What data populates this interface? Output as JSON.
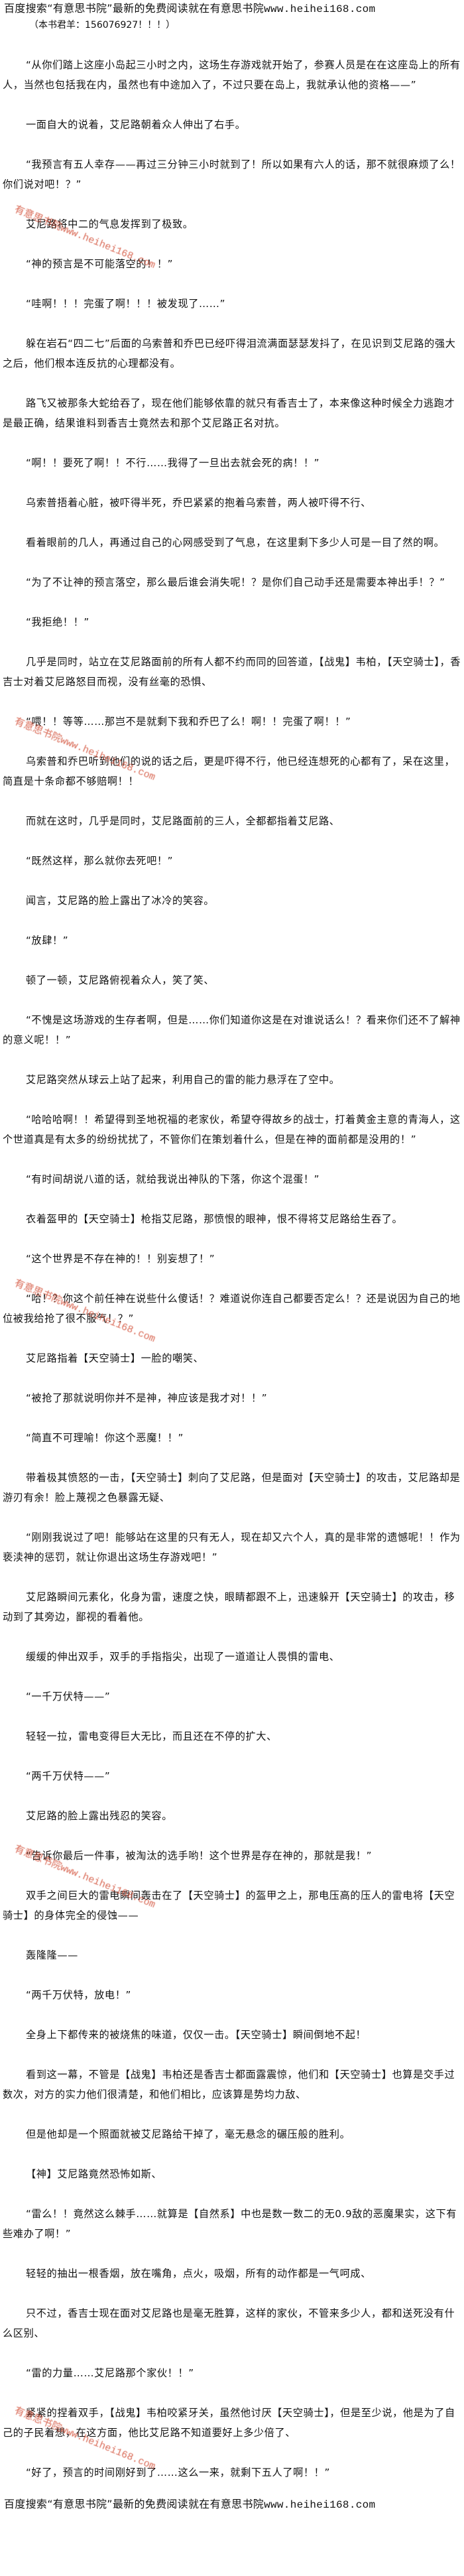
{
  "header": {
    "banner_text": "百度搜索“有意思书院”最新的免费阅读就在有意思书院",
    "banner_url": "www.heihei168.com",
    "qq_group": "（本书君羊：156076927！！！）"
  },
  "watermark": {
    "text": "有意思书院",
    "url": "www.heihei168.com",
    "color": "#d0452c"
  },
  "paragraphs": [
    "“从你们踏上这座小岛起三小时之内，这场生存游戏就开始了，参赛人员是在在这座岛上的所有人，当然也包括我在内，虽然也有中途加入了，不过只要在岛上，我就承认他的资格——”",
    "一面自大的说着，艾尼路朝着众人伸出了右手。",
    "“我预言有五人幸存——再过三分钟三小时就到了！所以如果有六人的话，那不就很麻烦了么！你们说对吧！？”",
    "艾尼路将中二的气息发挥到了极致。",
    "“神的预言是不可能落空的！！”",
    "“哇啊！！！完蛋了啊！！！被发现了……”",
    "躲在岩石“四二七”后面的乌索普和乔巴已经吓得泪流满面瑟瑟发抖了，在见识到艾尼路的强大之后，他们根本连反抗的心理都没有。",
    "路飞又被那条大蛇给吞了，现在他们能够依靠的就只有香吉士了，本来像这种时候全力逃跑才是最正确，结果谁料到香吉士竟然去和那个艾尼路正名对抗。",
    "“啊！！要死了啊！！不行……我得了一旦出去就会死的病！！”",
    "乌索普捂着心脏，被吓得半死，乔巴紧紧的抱着乌索普，两人被吓得不行、",
    "看着眼前的几人，再通过自己的心网感受到了气息，在这里剩下多少人可是一目了然的啊。",
    "“为了不让神的预言落空，那么最后谁会消失呢！？是你们自己动手还是需要本神出手！？”",
    "“我拒绝！！”",
    "几乎是同时，站立在艾尼路面前的所有人都不约而同的回答道，【战鬼】韦柏，【天空骑士】，香吉士对着艾尼路怒目而视，没有丝毫的恐惧、",
    "“喂！！等等……那岂不是就剩下我和乔巴了么！啊！！完蛋了啊！！”",
    "乌索普和乔巴听到他们的说的话之后，更是吓得不行，他已经连想死的心都有了，呆在这里，简直是十条命都不够赔啊！！",
    "而就在这时，几乎是同时，艾尼路面前的三人，全都都指着艾尼路、",
    "“既然这样，那么就你去死吧！”",
    "闻言，艾尼路的脸上露出了冰冷的笑容。",
    "“放肆！”",
    "顿了一顿，艾尼路俯视着众人，笑了笑、",
    "“不愧是这场游戏的生存者啊，但是……你们知道你这是在对谁说话么！？看来你们还不了解神的意义呢！！”",
    "艾尼路突然从球云上站了起来，利用自己的雷的能力悬浮在了空中。",
    "“哈哈哈啊！！希望得到圣地祝福的老家伙，希望夺得故乡的战士，打着黄金主意的青海人，这个世道真是有太多的纷纷扰扰了，不管你们在策划着什么，但是在神的面前都是没用的！”",
    "“有时间胡说八道的话，就给我说出神队的下落，你这个混蛋！”",
    "衣着盔甲的【天空骑士】枪指艾尼路，那愤恨的眼神，恨不得将艾尼路给生吞了。",
    "“这个世界是不存在神的！！别妄想了！”",
    "“哈！？你这个前任神在说些什么傻话！？难道说你连自己都要否定么！？还是说因为自己的地位被我给抢了很不服气！？”",
    "艾尼路指着【天空骑士】一脸的嘲笑、",
    "“被抢了那就说明你并不是神，神应该是我才对！！”",
    "“简直不可理喻！你这个恶魔！！”",
    "带着极其愤怒的一击，【天空骑士】刺向了艾尼路，但是面对【天空骑士】的攻击，艾尼路却是游刃有余！脸上蔑视之色暴露无疑、",
    "“刚刚我说过了吧！能够站在这里的只有无人，现在却又六个人，真的是非常的遗憾呢！！作为亵渎神的惩罚，就让你退出这场生存游戏吧！”",
    "艾尼路瞬间元素化，化身为雷，速度之快，眼睛都跟不上，迅速躲开【天空骑士】的攻击，移动到了其旁边，鄙视的看着他。",
    "缓缓的伸出双手，双手的手指指尖，出现了一道道让人畏惧的雷电、",
    "“一千万伏特——”",
    "轻轻一拉，雷电变得巨大无比，而且还在不停的扩大、",
    "“两千万伏特——”",
    "艾尼路的脸上露出残忍的笑容。",
    "“告诉你最后一件事，被淘汰的选手哟！这个世界是存在神的，那就是我！”",
    "双手之间巨大的雷电瞬间轰击在了【天空骑士】的盔甲之上，那电压高的压人的雷电将【天空骑士】的身体完全的侵蚀——",
    "轰隆隆——",
    "“两千万伏特，放电！”",
    "全身上下都传来的被烧焦的味道，仅仅一击。【天空骑士】瞬间倒地不起！",
    "看到这一幕，不管是【战鬼】韦柏还是香吉士都面露震惊，他们和【天空骑士】也算是交手过数次，对方的实力他们很清楚，和他们相比，应该算是势均力敌、",
    "但是他却是一个照面就被艾尼路给干掉了，毫无悬念的碾压般的胜利。",
    "【神】艾尼路竟然恐怖如斯、",
    "“雷么！！竟然这么棘手……就算是【自然系】中也是数一数二的无0.9敌的恶魔果实，这下有些难办了啊！”",
    "轻轻的抽出一根香烟，放在嘴角，点火，吸烟，所有的动作都是一气呵成、",
    "只不过，香吉士现在面对艾尼路也是毫无胜算，这样的家伙，不管来多少人，都和送死没有什么区别、",
    "“雷的力量……艾尼路那个家伙！！”",
    "紧紧的捏着双手，【战鬼】韦柏咬紧牙关，虽然他讨厌【天空骑士】，但是至少说，他是为了自己的子民着想，在这方面，他比艾尼路不知道要好上多少倍了、",
    "“好了，预言的时间刚好到了……这么一来，就剩下五人了啊！！”"
  ],
  "footer": {
    "banner_text": "百度搜索“有意思书院”最新的免费阅读就在有意思书院",
    "banner_url": "www.heihei168.com"
  }
}
